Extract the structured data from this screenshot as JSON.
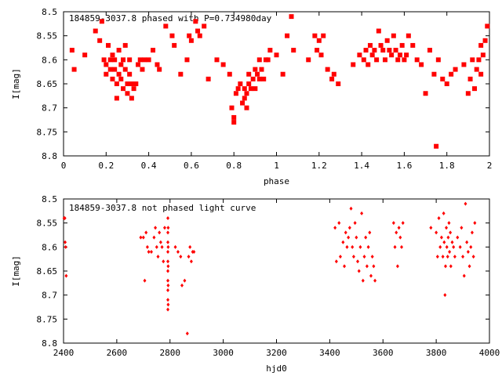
{
  "chart_data": [
    {
      "type": "scatter",
      "title": "184859-3037.8 phased with P=0.734980day",
      "xlabel": "phase",
      "ylabel": "I[mag]",
      "xlim": [
        0,
        2
      ],
      "ylim": [
        8.8,
        8.5
      ],
      "y_inverted": true,
      "grid": false,
      "marker": "filled-square",
      "color": "#ff0000",
      "xticks": [
        "0",
        "0.2",
        "0.4",
        "0.6",
        "0.8",
        "1",
        "1.2",
        "1.4",
        "1.6",
        "1.8",
        "2"
      ],
      "yticks": [
        "8.5",
        "8.55",
        "8.6",
        "8.65",
        "8.7",
        "8.75",
        "8.8"
      ],
      "points": [
        [
          0.04,
          8.58
        ],
        [
          0.05,
          8.62
        ],
        [
          0.1,
          8.59
        ],
        [
          0.15,
          8.54
        ],
        [
          0.17,
          8.56
        ],
        [
          0.18,
          8.52
        ],
        [
          0.19,
          8.6
        ],
        [
          0.2,
          8.61
        ],
        [
          0.2,
          8.63
        ],
        [
          0.21,
          8.57
        ],
        [
          0.22,
          8.6
        ],
        [
          0.22,
          8.62
        ],
        [
          0.23,
          8.59
        ],
        [
          0.23,
          8.64
        ],
        [
          0.24,
          8.6
        ],
        [
          0.24,
          8.62
        ],
        [
          0.25,
          8.65
        ],
        [
          0.25,
          8.68
        ],
        [
          0.26,
          8.63
        ],
        [
          0.26,
          8.58
        ],
        [
          0.27,
          8.61
        ],
        [
          0.27,
          8.64
        ],
        [
          0.28,
          8.6
        ],
        [
          0.28,
          8.66
        ],
        [
          0.29,
          8.57
        ],
        [
          0.29,
          8.62
        ],
        [
          0.3,
          8.65
        ],
        [
          0.3,
          8.67
        ],
        [
          0.31,
          8.63
        ],
        [
          0.31,
          8.6
        ],
        [
          0.32,
          8.68
        ],
        [
          0.32,
          8.65
        ],
        [
          0.33,
          8.66
        ],
        [
          0.34,
          8.65
        ],
        [
          0.35,
          8.61
        ],
        [
          0.36,
          8.6
        ],
        [
          0.37,
          8.62
        ],
        [
          0.38,
          8.6
        ],
        [
          0.4,
          8.6
        ],
        [
          0.42,
          8.58
        ],
        [
          0.44,
          8.61
        ],
        [
          0.45,
          8.62
        ],
        [
          0.48,
          8.53
        ],
        [
          0.51,
          8.55
        ],
        [
          0.52,
          8.57
        ],
        [
          0.55,
          8.63
        ],
        [
          0.58,
          8.6
        ],
        [
          0.59,
          8.55
        ],
        [
          0.6,
          8.56
        ],
        [
          0.62,
          8.52
        ],
        [
          0.63,
          8.54
        ],
        [
          0.64,
          8.55
        ],
        [
          0.66,
          8.53
        ],
        [
          0.68,
          8.64
        ],
        [
          0.72,
          8.6
        ],
        [
          0.75,
          8.61
        ],
        [
          0.78,
          8.63
        ],
        [
          0.79,
          8.7
        ],
        [
          0.8,
          8.72
        ],
        [
          0.8,
          8.73
        ],
        [
          0.81,
          8.67
        ],
        [
          0.82,
          8.66
        ],
        [
          0.83,
          8.65
        ],
        [
          0.84,
          8.69
        ],
        [
          0.85,
          8.68
        ],
        [
          0.85,
          8.66
        ],
        [
          0.86,
          8.67
        ],
        [
          0.86,
          8.7
        ],
        [
          0.87,
          8.65
        ],
        [
          0.87,
          8.63
        ],
        [
          0.88,
          8.66
        ],
        [
          0.89,
          8.64
        ],
        [
          0.9,
          8.62
        ],
        [
          0.9,
          8.66
        ],
        [
          0.91,
          8.63
        ],
        [
          0.92,
          8.6
        ],
        [
          0.92,
          8.64
        ],
        [
          0.93,
          8.62
        ],
        [
          0.94,
          8.64
        ],
        [
          0.95,
          8.6
        ],
        [
          0.96,
          8.6
        ],
        [
          0.97,
          8.58
        ],
        [
          1.0,
          8.59
        ],
        [
          1.03,
          8.63
        ],
        [
          1.05,
          8.55
        ],
        [
          1.07,
          8.51
        ],
        [
          1.08,
          8.58
        ],
        [
          1.15,
          8.6
        ],
        [
          1.18,
          8.55
        ],
        [
          1.19,
          8.58
        ],
        [
          1.2,
          8.56
        ],
        [
          1.21,
          8.59
        ],
        [
          1.22,
          8.55
        ],
        [
          1.24,
          8.62
        ],
        [
          1.26,
          8.64
        ],
        [
          1.27,
          8.63
        ],
        [
          1.29,
          8.65
        ],
        [
          1.36,
          8.61
        ],
        [
          1.39,
          8.59
        ],
        [
          1.41,
          8.6
        ],
        [
          1.42,
          8.58
        ],
        [
          1.43,
          8.61
        ],
        [
          1.44,
          8.57
        ],
        [
          1.45,
          8.59
        ],
        [
          1.46,
          8.58
        ],
        [
          1.47,
          8.6
        ],
        [
          1.48,
          8.54
        ],
        [
          1.49,
          8.57
        ],
        [
          1.5,
          8.58
        ],
        [
          1.51,
          8.6
        ],
        [
          1.52,
          8.56
        ],
        [
          1.53,
          8.58
        ],
        [
          1.54,
          8.59
        ],
        [
          1.55,
          8.55
        ],
        [
          1.56,
          8.58
        ],
        [
          1.57,
          8.6
        ],
        [
          1.58,
          8.59
        ],
        [
          1.59,
          8.57
        ],
        [
          1.6,
          8.6
        ],
        [
          1.61,
          8.59
        ],
        [
          1.62,
          8.55
        ],
        [
          1.64,
          8.57
        ],
        [
          1.66,
          8.6
        ],
        [
          1.68,
          8.61
        ],
        [
          1.7,
          8.67
        ],
        [
          1.72,
          8.58
        ],
        [
          1.74,
          8.63
        ],
        [
          1.75,
          8.78
        ],
        [
          1.76,
          8.6
        ],
        [
          1.78,
          8.64
        ],
        [
          1.8,
          8.65
        ],
        [
          1.82,
          8.63
        ],
        [
          1.84,
          8.62
        ],
        [
          1.88,
          8.61
        ],
        [
          1.9,
          8.67
        ],
        [
          1.91,
          8.64
        ],
        [
          1.93,
          8.66
        ],
        [
          1.94,
          8.62
        ],
        [
          1.95,
          8.6
        ],
        [
          1.96,
          8.63
        ],
        [
          1.97,
          8.59
        ],
        [
          1.98,
          8.56
        ],
        [
          1.99,
          8.53
        ],
        [
          1.96,
          8.57
        ],
        [
          1.92,
          8.6
        ]
      ]
    },
    {
      "type": "scatter",
      "title": "184859-3037.8 not phased light curve",
      "xlabel": "hjd0",
      "ylabel": "I[mag]",
      "xlim": [
        2400,
        4000
      ],
      "ylim": [
        8.8,
        8.5
      ],
      "y_inverted": true,
      "grid": false,
      "marker": "small-diamond",
      "color": "#ff0000",
      "xticks": [
        "2400",
        "2600",
        "2800",
        "3000",
        "3200",
        "3400",
        "3600",
        "3800",
        "4000"
      ],
      "yticks": [
        "8.5",
        "8.55",
        "8.6",
        "8.65",
        "8.7",
        "8.75",
        "8.8"
      ],
      "points": [
        [
          2402,
          8.54
        ],
        [
          2405,
          8.54
        ],
        [
          2406,
          8.59
        ],
        [
          2408,
          8.6
        ],
        [
          2410,
          8.66
        ],
        [
          2690,
          8.58
        ],
        [
          2700,
          8.58
        ],
        [
          2705,
          8.67
        ],
        [
          2710,
          8.57
        ],
        [
          2715,
          8.6
        ],
        [
          2720,
          8.61
        ],
        [
          2730,
          8.61
        ],
        [
          2740,
          8.58
        ],
        [
          2745,
          8.56
        ],
        [
          2750,
          8.6
        ],
        [
          2755,
          8.62
        ],
        [
          2760,
          8.57
        ],
        [
          2765,
          8.59
        ],
        [
          2770,
          8.6
        ],
        [
          2775,
          8.63
        ],
        [
          2780,
          8.56
        ],
        [
          2792,
          8.54
        ],
        [
          2792,
          8.57
        ],
        [
          2792,
          8.59
        ],
        [
          2792,
          8.61
        ],
        [
          2792,
          8.63
        ],
        [
          2792,
          8.65
        ],
        [
          2792,
          8.67
        ],
        [
          2792,
          8.69
        ],
        [
          2792,
          8.71
        ],
        [
          2792,
          8.73
        ],
        [
          2793,
          8.56
        ],
        [
          2793,
          8.6
        ],
        [
          2793,
          8.64
        ],
        [
          2793,
          8.68
        ],
        [
          2793,
          8.72
        ],
        [
          2820,
          8.6
        ],
        [
          2830,
          8.61
        ],
        [
          2840,
          8.62
        ],
        [
          2845,
          8.68
        ],
        [
          2855,
          8.67
        ],
        [
          2865,
          8.78
        ],
        [
          2870,
          8.62
        ],
        [
          2875,
          8.6
        ],
        [
          2880,
          8.63
        ],
        [
          2885,
          8.61
        ],
        [
          2890,
          8.61
        ],
        [
          3420,
          8.56
        ],
        [
          3425,
          8.63
        ],
        [
          3435,
          8.55
        ],
        [
          3440,
          8.62
        ],
        [
          3450,
          8.59
        ],
        [
          3455,
          8.64
        ],
        [
          3460,
          8.57
        ],
        [
          3465,
          8.6
        ],
        [
          3470,
          8.58
        ],
        [
          3475,
          8.56
        ],
        [
          3480,
          8.52
        ],
        [
          3485,
          8.6
        ],
        [
          3490,
          8.62
        ],
        [
          3495,
          8.55
        ],
        [
          3500,
          8.58
        ],
        [
          3505,
          8.63
        ],
        [
          3510,
          8.65
        ],
        [
          3515,
          8.6
        ],
        [
          3520,
          8.53
        ],
        [
          3525,
          8.67
        ],
        [
          3530,
          8.62
        ],
        [
          3535,
          8.58
        ],
        [
          3540,
          8.64
        ],
        [
          3545,
          8.6
        ],
        [
          3550,
          8.57
        ],
        [
          3555,
          8.66
        ],
        [
          3560,
          8.62
        ],
        [
          3565,
          8.64
        ],
        [
          3570,
          8.67
        ],
        [
          3640,
          8.55
        ],
        [
          3645,
          8.6
        ],
        [
          3650,
          8.57
        ],
        [
          3655,
          8.64
        ],
        [
          3660,
          8.56
        ],
        [
          3665,
          8.58
        ],
        [
          3670,
          8.6
        ],
        [
          3675,
          8.55
        ],
        [
          3780,
          8.56
        ],
        [
          3800,
          8.57
        ],
        [
          3805,
          8.62
        ],
        [
          3810,
          8.54
        ],
        [
          3815,
          8.6
        ],
        [
          3820,
          8.58
        ],
        [
          3825,
          8.62
        ],
        [
          3828,
          8.53
        ],
        [
          3830,
          8.59
        ],
        [
          3833,
          8.7
        ],
        [
          3835,
          8.64
        ],
        [
          3838,
          8.56
        ],
        [
          3840,
          8.6
        ],
        [
          3843,
          8.62
        ],
        [
          3845,
          8.58
        ],
        [
          3848,
          8.55
        ],
        [
          3850,
          8.61
        ],
        [
          3853,
          8.57
        ],
        [
          3855,
          8.64
        ],
        [
          3860,
          8.59
        ],
        [
          3865,
          8.6
        ],
        [
          3870,
          8.62
        ],
        [
          3880,
          8.58
        ],
        [
          3890,
          8.6
        ],
        [
          3895,
          8.56
        ],
        [
          3900,
          8.62
        ],
        [
          3905,
          8.66
        ],
        [
          3910,
          8.51
        ],
        [
          3915,
          8.59
        ],
        [
          3920,
          8.61
        ],
        [
          3925,
          8.64
        ],
        [
          3930,
          8.6
        ],
        [
          3935,
          8.57
        ],
        [
          3940,
          8.62
        ],
        [
          3945,
          8.55
        ]
      ]
    }
  ]
}
